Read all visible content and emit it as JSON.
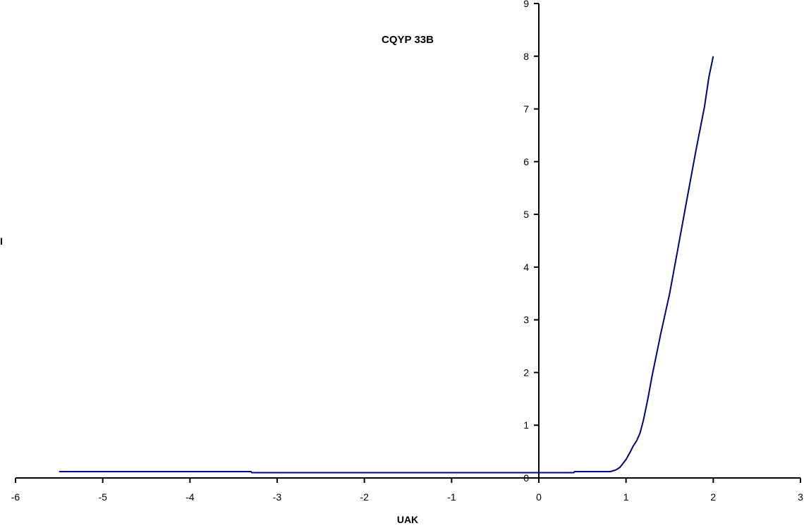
{
  "chart_data": {
    "type": "line",
    "title": "CQYP 33B",
    "xlabel": "UAK",
    "ylabel": "I",
    "xlim": [
      -6,
      3
    ],
    "ylim": [
      0,
      9
    ],
    "x_ticks": [
      -6,
      -5,
      -4,
      -3,
      -2,
      -1,
      0,
      1,
      2,
      3
    ],
    "y_ticks": [
      0,
      1,
      2,
      3,
      4,
      5,
      6,
      7,
      8,
      9
    ],
    "grid": false,
    "legend": null,
    "line_color": "#000080",
    "series": [
      {
        "name": "I",
        "x": [
          -5.5,
          -3.3,
          -3.29,
          0.4,
          0.41,
          0.82,
          0.88,
          0.93,
          1.0,
          1.05,
          1.08,
          1.12,
          1.16,
          1.2,
          1.25,
          1.3,
          1.4,
          1.5,
          1.6,
          1.7,
          1.8,
          1.9,
          1.95,
          2.0
        ],
        "y": [
          0.12,
          0.12,
          0.1,
          0.1,
          0.12,
          0.12,
          0.15,
          0.2,
          0.35,
          0.5,
          0.6,
          0.7,
          0.85,
          1.1,
          1.5,
          1.95,
          2.75,
          3.5,
          4.4,
          5.3,
          6.2,
          7.05,
          7.6,
          8.0
        ]
      }
    ]
  }
}
